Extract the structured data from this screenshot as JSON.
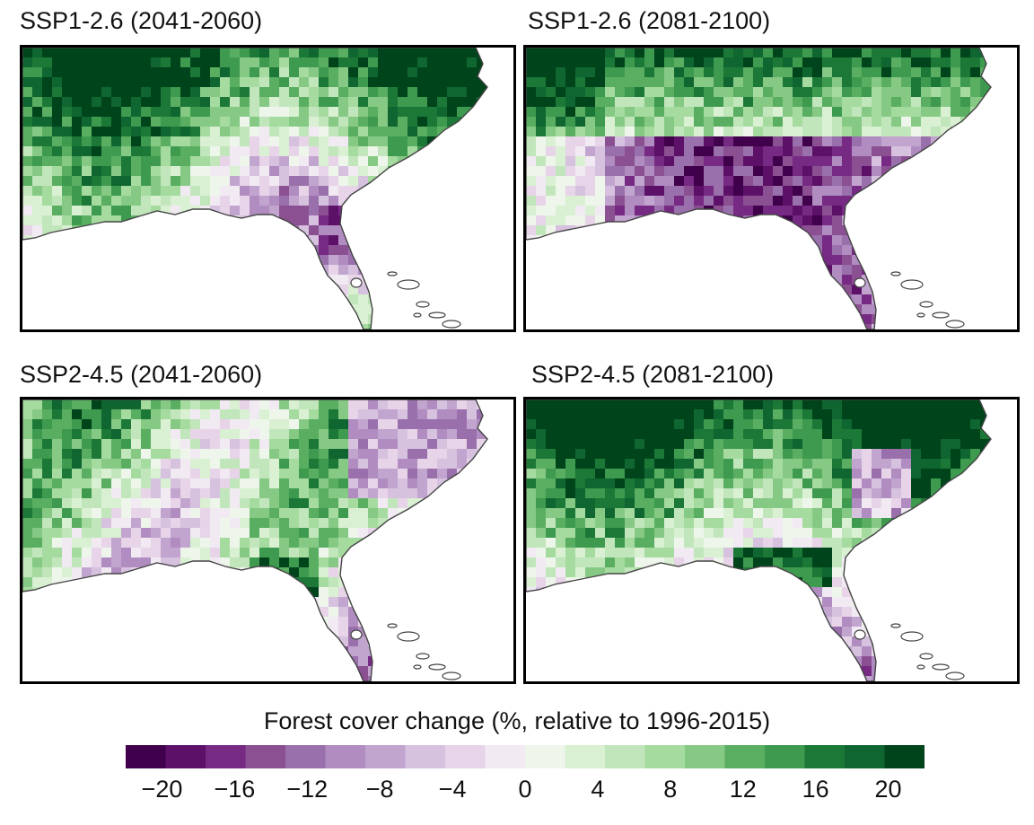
{
  "panels": [
    {
      "id": "p1",
      "title": "SSP1-2.6 (2041-2060)",
      "scenario": "ssp126_mid",
      "bias": 0.35
    },
    {
      "id": "p2",
      "title": "SSP1-2.6 (2081-2100)",
      "scenario": "ssp126_late",
      "bias": -0.15
    },
    {
      "id": "p3",
      "title": "SSP2-4.5 (2041-2060)",
      "scenario": "ssp245_mid",
      "bias": 0.2
    },
    {
      "id": "p4",
      "title": "SSP2-4.5 (2081-2100)",
      "scenario": "ssp245_late",
      "bias": 0.35
    }
  ],
  "colorbar": {
    "title": "Forest cover change (%, relative to 1996-2015)",
    "min": -22,
    "max": 22,
    "step": 2,
    "ticks": [
      "−20",
      "−16",
      "−12",
      "−8",
      "−4",
      "0",
      "4",
      "8",
      "12",
      "16",
      "20"
    ],
    "tick_values": [
      -20,
      -16,
      -12,
      -8,
      -4,
      0,
      4,
      8,
      12,
      16,
      20
    ],
    "colors": [
      "#40004b",
      "#5c1068",
      "#762a83",
      "#8a5092",
      "#9970ab",
      "#b08cc0",
      "#c2a5cf",
      "#d6c2df",
      "#e7d4e8",
      "#f1eaf3",
      "#eef6ec",
      "#d9f0d3",
      "#c2e6bb",
      "#a6dba0",
      "#86c985",
      "#5aae61",
      "#3d9a4e",
      "#1b7837",
      "#0f6630",
      "#00441b"
    ]
  }
}
